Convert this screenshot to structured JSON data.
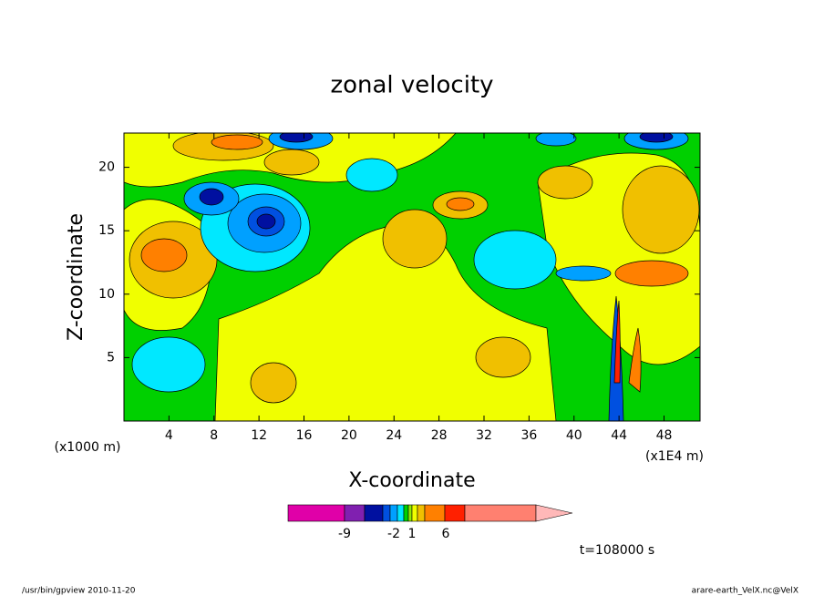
{
  "chart_data": {
    "type": "contour",
    "title": "zonal velocity",
    "xlabel": "X-coordinate",
    "ylabel": "Z-coordinate",
    "x_unit_left": "(x1000 m)",
    "x_unit_right": "(x1E4 m)",
    "xlim": [
      0,
      51.2
    ],
    "ylim": [
      0,
      22.7
    ],
    "xticks": [
      4,
      8,
      12,
      16,
      20,
      24,
      28,
      32,
      36,
      40,
      44,
      48
    ],
    "yticks": [
      5,
      10,
      15,
      20
    ],
    "colorbar_colors": [
      "#e000a8",
      "#8020b0",
      "#0010a0",
      "#0050e0",
      "#00a0ff",
      "#00e8ff",
      "#00d000",
      "#90e800",
      "#f0ff00",
      "#f0c000",
      "#ff8000",
      "#ff2000",
      "#ff8070"
    ],
    "colorbar_extend_color": "#ffb8b8",
    "colorbar_ticks": [
      -9,
      -2,
      1,
      6
    ],
    "time_label": "t=108000 s",
    "footer_left": "/usr/bin/gpview  2010-11-20",
    "footer_right": "arare-earth_VelX.nc@VelX"
  }
}
